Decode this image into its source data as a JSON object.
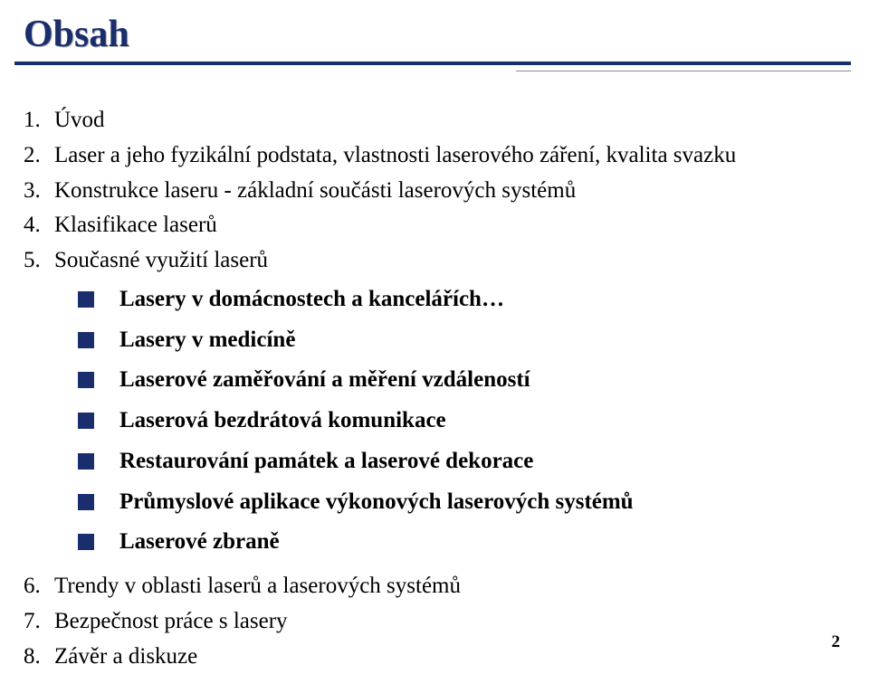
{
  "title": "Obsah",
  "colors": {
    "heading": "#1a2e6e",
    "bullet": "#1a2e6e",
    "rule_main": "#1a2e6e",
    "rule_sub": "#8a8a8a",
    "text": "#000000",
    "background": "#ffffff"
  },
  "items": [
    {
      "num": "1.",
      "text": "Úvod"
    },
    {
      "num": "2.",
      "text": "Laser a jeho fyzikální podstata, vlastnosti laserového záření, kvalita svazku"
    },
    {
      "num": "3.",
      "text": "Konstrukce laseru - základní součásti laserových systémů"
    },
    {
      "num": "4.",
      "text": "Klasifikace laserů"
    },
    {
      "num": "5.",
      "text": "Současné využití laserů"
    },
    {
      "num": "6.",
      "text": "Trendy v oblasti laserů a laserových systémů"
    },
    {
      "num": "7.",
      "text": "Bezpečnost práce s lasery"
    },
    {
      "num": "8.",
      "text": "Závěr a diskuze"
    }
  ],
  "sub_items": [
    "Lasery v domácnostech a kancelářích…",
    "Lasery v medicíně",
    "Laserové zaměřování a měření vzdáleností",
    "Laserová bezdrátová komunikace",
    "Restaurování památek a laserové dekorace",
    "Průmyslové aplikace výkonových laserových systémů",
    "Laserové zbraně"
  ],
  "page_number": "2"
}
